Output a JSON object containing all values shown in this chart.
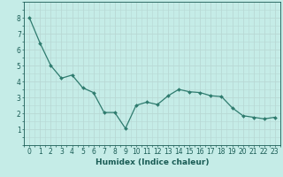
{
  "x": [
    0,
    1,
    2,
    3,
    4,
    5,
    6,
    7,
    8,
    9,
    10,
    11,
    12,
    13,
    14,
    15,
    16,
    17,
    18,
    19,
    20,
    21,
    22,
    23
  ],
  "y": [
    8.0,
    6.4,
    5.0,
    4.2,
    4.4,
    3.6,
    3.3,
    2.05,
    2.05,
    1.05,
    2.5,
    2.7,
    2.55,
    3.1,
    3.5,
    3.35,
    3.3,
    3.1,
    3.05,
    2.35,
    1.85,
    1.75,
    1.65,
    1.75
  ],
  "line_color": "#2e7b6e",
  "marker": "D",
  "markersize": 2.0,
  "linewidth": 0.9,
  "bg_color": "#c5ece7",
  "grid_color_major": "#b8d8d4",
  "grid_color_minor": "#cee8e4",
  "xlabel": "Humidex (Indice chaleur)",
  "xlabel_color": "#1a5c55",
  "xlabel_fontsize": 6.5,
  "tick_color": "#1a5c55",
  "tick_fontsize": 5.5,
  "ylim": [
    0,
    9
  ],
  "xlim": [
    -0.5,
    23.5
  ],
  "yticks": [
    1,
    2,
    3,
    4,
    5,
    6,
    7,
    8
  ],
  "xticks": [
    0,
    1,
    2,
    3,
    4,
    5,
    6,
    7,
    8,
    9,
    10,
    11,
    12,
    13,
    14,
    15,
    16,
    17,
    18,
    19,
    20,
    21,
    22,
    23
  ]
}
